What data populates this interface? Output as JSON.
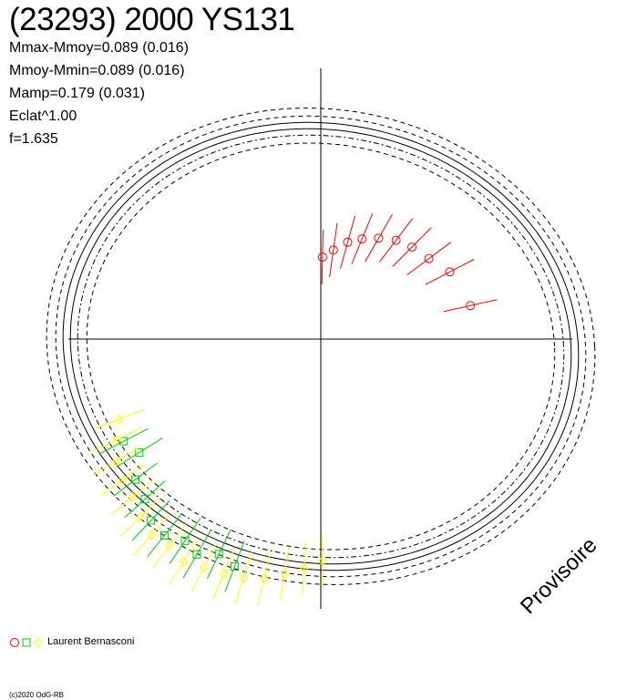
{
  "title": "(23293) 2000 YS131",
  "stats": [
    "Mmax-Mmoy=0.089 (0.016)",
    "Mmoy-Mmin=0.089 (0.016)",
    "Mamp=0.179 (0.031)",
    "Eclat^1.00",
    "f=1.635"
  ],
  "watermark": "Provisoire",
  "legend": {
    "label": "Laurent Bernasconi",
    "markers": [
      "circle",
      "square",
      "diamond"
    ]
  },
  "credit": "(c)2020 OdG-RB",
  "colors": {
    "red": "#ff0000",
    "green": "#00cc00",
    "yellow": "#ffff00",
    "axis": "#000000"
  },
  "chart_data": {
    "type": "scatter",
    "title": "(23293) 2000 YS131",
    "projection": "polar",
    "grid": false,
    "axes": "cross",
    "legend": "bottom-left",
    "series": [
      {
        "marker": "circle",
        "color": "#ff0000",
        "points": [
          [
            0.22,
            0.58
          ],
          [
            0.48,
            0.55
          ],
          [
            0.64,
            0.51
          ],
          [
            0.79,
            0.49
          ],
          [
            0.92,
            0.47
          ],
          [
            1.05,
            0.44
          ],
          [
            1.18,
            0.41
          ],
          [
            1.3,
            0.38
          ],
          [
            1.43,
            0.34
          ],
          [
            1.55,
            0.31
          ]
        ]
      },
      {
        "marker": "square",
        "color": "#00cc00",
        "points": [
          [
            3.7,
            0.81
          ],
          [
            3.62,
            0.84
          ],
          [
            3.79,
            0.88
          ],
          [
            3.88,
            0.9
          ],
          [
            3.96,
            0.94
          ],
          [
            4.04,
            0.95
          ],
          [
            4.12,
            0.92
          ],
          [
            4.19,
            0.94
          ],
          [
            4.27,
            0.9
          ],
          [
            4.35,
            0.92
          ]
        ]
      },
      {
        "marker": "diamond",
        "color": "#ffff00",
        "points": [
          [
            3.52,
            0.82
          ],
          [
            3.6,
            0.86
          ],
          [
            3.68,
            0.9
          ],
          [
            3.76,
            0.92
          ],
          [
            3.84,
            0.93
          ],
          [
            3.92,
            0.96
          ],
          [
            4.0,
            0.98
          ],
          [
            4.08,
            0.97
          ],
          [
            4.16,
            0.99
          ],
          [
            4.24,
            0.97
          ],
          [
            4.32,
            0.96
          ],
          [
            4.4,
            0.95
          ],
          [
            4.48,
            0.93
          ],
          [
            4.56,
            0.9
          ],
          [
            4.64,
            0.87
          ],
          [
            4.72,
            0.84
          ]
        ]
      }
    ]
  }
}
